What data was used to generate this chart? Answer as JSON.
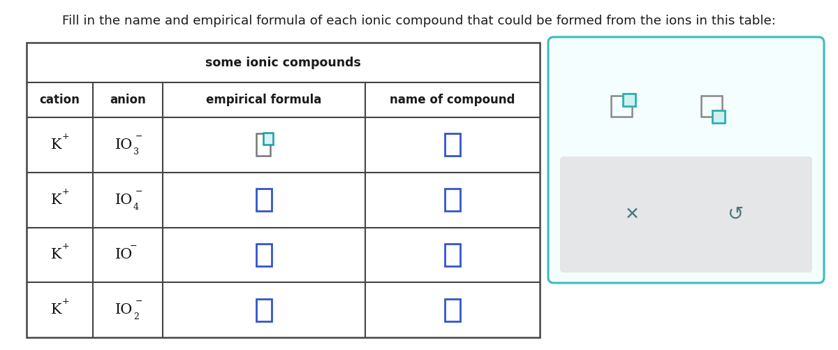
{
  "title_text": "Fill in the name and empirical formula of each ionic compound that could be formed from the ions in this table:",
  "table_title": "some ionic compounds",
  "col_headers": [
    "cation",
    "anion",
    "empirical formula",
    "name of compound"
  ],
  "rows": [
    {
      "cation": "K",
      "cation_sup": "+",
      "anion_base": "IO",
      "anion_sub": "3",
      "anion_sup": "−"
    },
    {
      "cation": "K",
      "cation_sup": "+",
      "anion_base": "IO",
      "anion_sub": "4",
      "anion_sup": "−"
    },
    {
      "cation": "K",
      "cation_sup": "+",
      "anion_base": "IO",
      "anion_sub": "",
      "anion_sup": "−"
    },
    {
      "cation": "K",
      "cation_sup": "+",
      "anion_base": "IO",
      "anion_sub": "2",
      "anion_sup": "−"
    }
  ],
  "bg_color": "#ffffff",
  "table_border_color": "#444444",
  "header_text_color": "#1a1a1a",
  "cell_text_color": "#111111",
  "checkbox_color_blue": "#3355cc",
  "checkbox_color_teal": "#1a9ca0",
  "checkbox_color_gray": "#777777",
  "panel_bg": "#ffffff",
  "panel_border": "#3bbcbc",
  "gray_box_bg": "#e4e6e8",
  "gray_box_border": "#cccccc",
  "icon_gray": "#888888",
  "icon_teal": "#2ab0b0",
  "icon_teal_fill": "#d0f0f0",
  "x_color": "#4a7a7a",
  "undo_color": "#4a7a7a"
}
